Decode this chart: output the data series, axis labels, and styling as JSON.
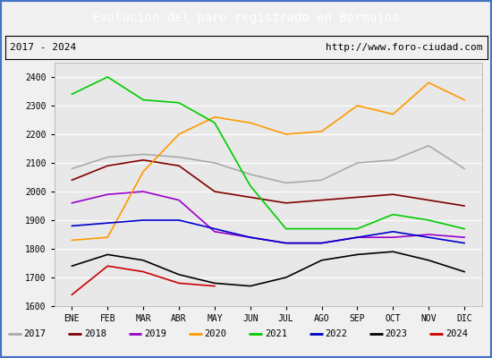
{
  "title": "Evolucion del paro registrado en Bormujos",
  "title_color": "#ffffff",
  "title_bg": "#4472c4",
  "subtitle_left": "2017 - 2024",
  "subtitle_right": "http://www.foro-ciudad.com",
  "xlabel_months": [
    "ENE",
    "FEB",
    "MAR",
    "ABR",
    "MAY",
    "JUN",
    "JUL",
    "AGO",
    "SEP",
    "OCT",
    "NOV",
    "DIC"
  ],
  "ylim": [
    1600,
    2450
  ],
  "yticks": [
    1600,
    1700,
    1800,
    1900,
    2000,
    2100,
    2200,
    2300,
    2400
  ],
  "series": {
    "2017": {
      "color": "#aaaaaa",
      "data": [
        2080,
        2120,
        2130,
        2120,
        2100,
        2060,
        2030,
        2040,
        2100,
        2110,
        2160,
        2080
      ]
    },
    "2018": {
      "color": "#800000",
      "data": [
        2040,
        2090,
        2110,
        2090,
        2000,
        1980,
        1960,
        1970,
        1980,
        1990,
        1970,
        1950
      ]
    },
    "2019": {
      "color": "#9900cc",
      "data": [
        1960,
        1990,
        2000,
        1970,
        1860,
        1840,
        1820,
        1820,
        1840,
        1840,
        1850,
        1840
      ]
    },
    "2020": {
      "color": "#ff9900",
      "data": [
        1830,
        1840,
        2070,
        2200,
        2260,
        2240,
        2200,
        2210,
        2300,
        2270,
        2380,
        2320
      ]
    },
    "2021": {
      "color": "#00cc00",
      "data": [
        2340,
        2400,
        2320,
        2310,
        2240,
        2020,
        1870,
        1870,
        1870,
        1920,
        1900,
        1870
      ]
    },
    "2022": {
      "color": "#0000cc",
      "data": [
        1880,
        1890,
        1900,
        1900,
        1870,
        1840,
        1820,
        1820,
        1840,
        1860,
        1840,
        1820
      ]
    },
    "2023": {
      "color": "#000000",
      "data": [
        1740,
        1780,
        1760,
        1710,
        1680,
        1670,
        1700,
        1760,
        1780,
        1790,
        1760,
        1720
      ]
    },
    "2024": {
      "color": "#cc0000",
      "data": [
        1640,
        1740,
        1720,
        1680,
        1670,
        null,
        null,
        null,
        null,
        null,
        null,
        null
      ]
    }
  },
  "bg_color": "#f0f0f0",
  "plot_bg": "#e8e8e8",
  "grid_color": "#ffffff",
  "outer_border_color": "#4472c4",
  "legend_labels": [
    "2017",
    "2018",
    "2019",
    "2020",
    "2021",
    "2022",
    "2023",
    "2024"
  ]
}
